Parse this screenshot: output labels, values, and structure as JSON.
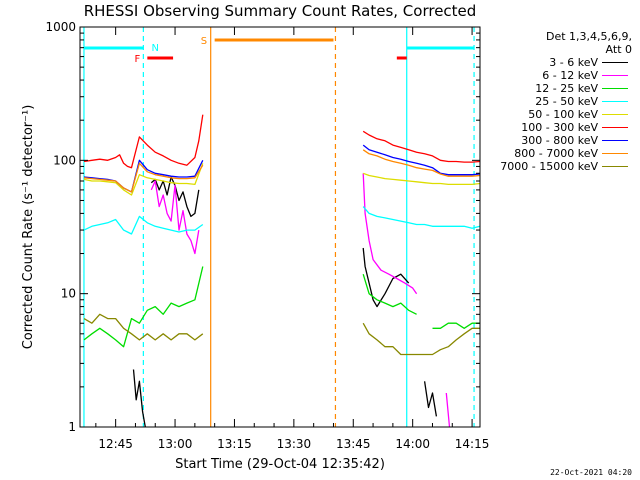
{
  "chart_data": {
    "type": "line",
    "title": "RHESSI Observing Summary Count Rates, Corrected",
    "xlabel": "Start Time (29-Oct-04 12:35:42)",
    "ylabel": "Corrected Count Rate (s⁻¹ detector⁻¹)",
    "yscale": "log",
    "ylim": [
      1,
      1000
    ],
    "xlim_minutes_of_day": [
      756,
      857
    ],
    "x_tick_labels": [
      "12:45",
      "13:00",
      "13:15",
      "13:30",
      "13:45",
      "14:00",
      "14:15"
    ],
    "x_tick_minutes": [
      765,
      780,
      795,
      810,
      825,
      840,
      855
    ],
    "y_tick_labels": [
      "1",
      "10",
      "100",
      "1000"
    ],
    "y_tick_values": [
      1,
      10,
      100,
      1000
    ],
    "legend_header": [
      "Det 1,3,4,5,6,9,",
      "Att 0"
    ],
    "series": [
      {
        "name": "3 - 6 keV",
        "color": "#000000",
        "segments": [
          {
            "t": [
              769.5,
              770.2,
              771.0,
              771.8,
              772.5
            ],
            "v": [
              2.7,
              1.6,
              2.2,
              1.3,
              1.0
            ]
          },
          {
            "t": [
              774,
              775,
              776,
              777,
              778,
              779,
              780,
              781,
              782,
              783,
              784,
              785,
              786
            ],
            "v": [
              68,
              72,
              60,
              70,
              55,
              75,
              65,
              50,
              58,
              45,
              38,
              40,
              60
            ]
          },
          {
            "t": [
              827.5,
              828,
              829,
              830,
              831,
              833,
              835,
              837,
              839
            ],
            "v": [
              22,
              16,
              12,
              9,
              8,
              10,
              13,
              14,
              12
            ]
          },
          {
            "t": [
              843,
              844,
              845,
              846
            ],
            "v": [
              2.2,
              1.4,
              1.8,
              1.2
            ]
          }
        ]
      },
      {
        "name": "6 - 12 keV",
        "color": "#ff00ff",
        "segments": [
          {
            "t": [
              774,
              775,
              776,
              777,
              778,
              779,
              780,
              781,
              782,
              783,
              784,
              785,
              786
            ],
            "v": [
              60,
              70,
              45,
              55,
              40,
              35,
              65,
              30,
              42,
              28,
              25,
              20,
              30
            ]
          },
          {
            "t": [
              827.5,
              828,
              829,
              830,
              832,
              834,
              836,
              838,
              840,
              841
            ],
            "v": [
              80,
              40,
              25,
              18,
              15,
              14,
              13,
              12,
              11,
              10
            ]
          },
          {
            "t": [
              848.5,
              849.3
            ],
            "v": [
              1.8,
              1.0
            ]
          }
        ]
      },
      {
        "name": "12 - 25 keV",
        "color": "#00dd00",
        "segments": [
          {
            "t": [
              757,
              759,
              761,
              763,
              765,
              767,
              769,
              771,
              773,
              775,
              777,
              779,
              781,
              783,
              785,
              787
            ],
            "v": [
              4.5,
              5.0,
              5.5,
              5.0,
              4.5,
              4.0,
              6.5,
              6.0,
              7.5,
              8.0,
              7.0,
              8.5,
              8.0,
              8.5,
              9.0,
              16
            ]
          },
          {
            "t": [
              827.5,
              829,
              831,
              833,
              835,
              837,
              839,
              841
            ],
            "v": [
              14,
              10,
              9,
              8.5,
              8.0,
              8.5,
              7.5,
              7.0
            ]
          },
          {
            "t": [
              845,
              847,
              849,
              851,
              853,
              855,
              857
            ],
            "v": [
              5.5,
              5.5,
              6.0,
              6.0,
              5.5,
              6.0,
              6.0
            ]
          }
        ]
      },
      {
        "name": "25 - 50 keV",
        "color": "#00ffff",
        "segments": [
          {
            "t": [
              757,
              759,
              761,
              763,
              765,
              767,
              769,
              771,
              773,
              775,
              777,
              779,
              781,
              783,
              785,
              787
            ],
            "v": [
              30,
              32,
              33,
              34,
              36,
              30,
              28,
              38,
              34,
              32,
              31,
              30,
              29,
              30,
              30,
              33
            ]
          },
          {
            "t": [
              827.5,
              829,
              831,
              833,
              835,
              837,
              839,
              841,
              843,
              845,
              847,
              849,
              851,
              853,
              855,
              857
            ],
            "v": [
              45,
              40,
              38,
              37,
              36,
              35,
              34,
              33,
              33,
              32,
              32,
              32,
              32,
              32,
              31,
              32
            ]
          }
        ]
      },
      {
        "name": "50 - 100 keV",
        "color": "#dddd00",
        "segments": [
          {
            "t": [
              757,
              759,
              761,
              763,
              765,
              767,
              769,
              771,
              773,
              775,
              777,
              779,
              781,
              783,
              785,
              787
            ],
            "v": [
              72,
              70,
              70,
              69,
              68,
              60,
              55,
              78,
              74,
              72,
              70,
              68,
              67,
              67,
              66,
              95
            ]
          },
          {
            "t": [
              827.5,
              829,
              831,
              833,
              835,
              837,
              839,
              841,
              843,
              845,
              847,
              849,
              851,
              853,
              855,
              857
            ],
            "v": [
              80,
              77,
              75,
              73,
              72,
              71,
              70,
              69,
              68,
              67,
              67,
              66,
              66,
              66,
              66,
              67
            ]
          }
        ]
      },
      {
        "name": "100 - 300 keV",
        "color": "#ff0000",
        "segments": [
          {
            "t": [
              757,
              759,
              761,
              763,
              765,
              766,
              767,
              768,
              769,
              771,
              773,
              775,
              777,
              779,
              781,
              783,
              785,
              786,
              787
            ],
            "v": [
              98,
              100,
              102,
              100,
              105,
              110,
              95,
              90,
              88,
              150,
              130,
              115,
              108,
              100,
              95,
              92,
              105,
              140,
              220
            ]
          },
          {
            "t": [
              827.5,
              829,
              831,
              833,
              835,
              837,
              839,
              841,
              843,
              845,
              847,
              849,
              851,
              853,
              855,
              857
            ],
            "v": [
              165,
              155,
              145,
              140,
              130,
              125,
              120,
              115,
              112,
              108,
              100,
              98,
              98,
              97,
              97,
              98
            ]
          }
        ]
      },
      {
        "name": "300 - 800 keV",
        "color": "#0000ff",
        "segments": [
          {
            "t": [
              757,
              759,
              761,
              763,
              765,
              767,
              769,
              771,
              773,
              775,
              777,
              779,
              781,
              783,
              785,
              787
            ],
            "v": [
              75,
              74,
              73,
              72,
              70,
              62,
              58,
              100,
              85,
              80,
              78,
              76,
              75,
              75,
              76,
              100
            ]
          },
          {
            "t": [
              827.5,
              829,
              831,
              833,
              835,
              837,
              839,
              841,
              843,
              845,
              847,
              849,
              851,
              853,
              855,
              857
            ],
            "v": [
              130,
              120,
              115,
              110,
              105,
              102,
              98,
              95,
              92,
              88,
              80,
              78,
              78,
              78,
              78,
              79
            ]
          }
        ]
      },
      {
        "name": "800 - 7000 keV",
        "color": "#ff8800",
        "segments": [
          {
            "t": [
              757,
              759,
              761,
              763,
              765,
              767,
              769,
              771,
              773,
              775,
              777,
              779,
              781,
              783,
              785,
              787
            ],
            "v": [
              74,
              73,
              72,
              71,
              70,
              62,
              58,
              95,
              82,
              78,
              76,
              74,
              73,
              73,
              74,
              92
            ]
          },
          {
            "t": [
              827.5,
              829,
              831,
              833,
              835,
              837,
              839,
              841,
              843,
              845,
              847,
              849,
              851,
              853,
              855,
              857
            ],
            "v": [
              120,
              112,
              108,
              102,
              98,
              95,
              92,
              88,
              86,
              84,
              79,
              76,
              76,
              76,
              76,
              77
            ]
          }
        ]
      },
      {
        "name": "7000 - 15000 keV",
        "color": "#888800",
        "segments": [
          {
            "t": [
              757,
              759,
              761,
              763,
              765,
              767,
              769,
              771,
              773,
              775,
              777,
              779,
              781,
              783,
              785,
              787
            ],
            "v": [
              6.5,
              6.0,
              7.0,
              6.5,
              6.5,
              5.5,
              5.0,
              4.5,
              5.0,
              4.5,
              5.0,
              4.5,
              5.0,
              5.0,
              4.5,
              5.0
            ]
          },
          {
            "t": [
              827.5,
              829,
              831,
              833,
              835,
              837,
              839,
              841,
              843,
              845,
              847,
              849,
              851,
              853,
              855,
              857
            ],
            "v": [
              6.0,
              5.0,
              4.5,
              4.0,
              4.0,
              3.5,
              3.5,
              3.5,
              3.5,
              3.5,
              3.8,
              4.0,
              4.5,
              5.0,
              5.5,
              5.5
            ]
          }
        ]
      }
    ],
    "annotations": [
      {
        "label": "N",
        "color": "#00ffff"
      },
      {
        "label": "F",
        "color": "#ff0000"
      },
      {
        "label": "S",
        "color": "#ff8800"
      }
    ],
    "state_bars": [
      {
        "name": "night",
        "color": "#00ffff",
        "spans": [
          [
            757,
            772
          ],
          [
            838.5,
            855.5
          ]
        ]
      },
      {
        "name": "flare",
        "color": "#ff0000",
        "spans": [
          [
            773,
            779.5
          ],
          [
            836,
            838.5
          ]
        ]
      },
      {
        "name": "saa",
        "color": "#ff8800",
        "spans": [
          [
            790,
            820
          ]
        ]
      }
    ],
    "markers": [
      {
        "t": 757,
        "style": "solid",
        "color": "#00ffff"
      },
      {
        "t": 772,
        "style": "dashed",
        "color": "#00ffff"
      },
      {
        "t": 789,
        "style": "solid",
        "color": "#ff8800"
      },
      {
        "t": 820.5,
        "style": "dashed",
        "color": "#ff8800"
      },
      {
        "t": 838.5,
        "style": "solid",
        "color": "#00ffff"
      },
      {
        "t": 855.5,
        "style": "dashed",
        "color": "#00ffff"
      }
    ]
  },
  "footer": {
    "timestamp": "22-Oct-2021 04:20"
  }
}
